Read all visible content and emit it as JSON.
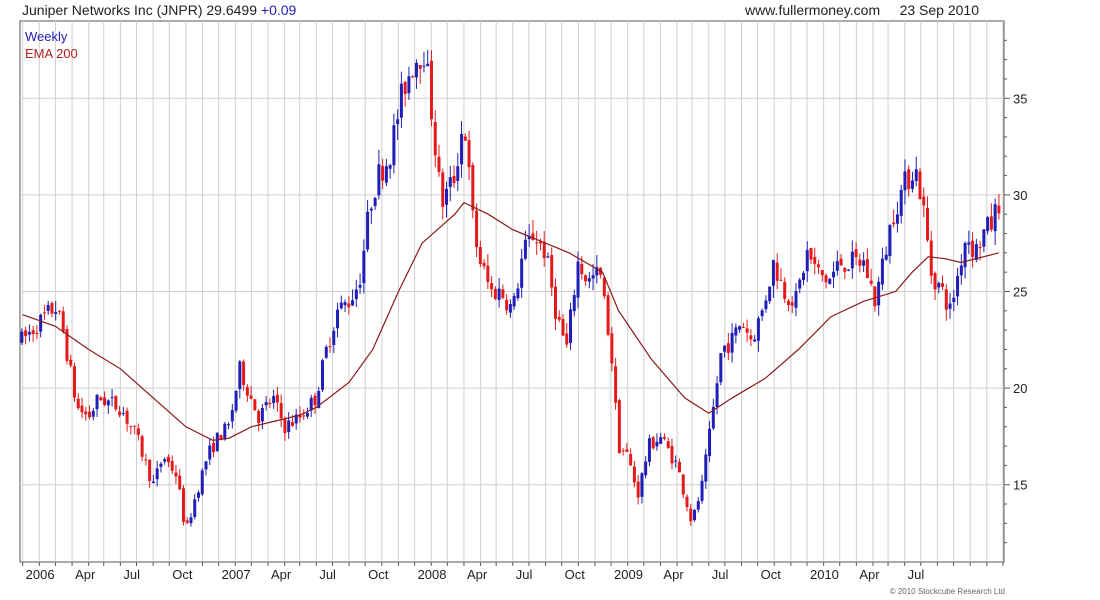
{
  "header": {
    "title": "Juniper Networks Inc (JNPR)",
    "price": "29.6499",
    "change": "+0.09",
    "site": "www.fullermoney.com",
    "date": "23 Sep 2010"
  },
  "legend": {
    "weekly": "Weekly",
    "ema": "EMA 200"
  },
  "copyright": "© 2010 Stockcube Research Ltd",
  "colors": {
    "up": "#1f1fb8",
    "down": "#e41a1a",
    "ema": "#8b1a1a",
    "grid": "#cfcfcf"
  },
  "chart_data": {
    "type": "candlestick",
    "frequency": "Weekly",
    "ylim": [
      11,
      39
    ],
    "y_ticks": [
      15,
      20,
      25,
      30,
      35
    ],
    "x_tick_labels": [
      "2006",
      "Apr",
      "Jul",
      "Oct",
      "2007",
      "Apr",
      "Jul",
      "Oct",
      "2008",
      "Apr",
      "Jul",
      "Oct",
      "2009",
      "Apr",
      "Jul",
      "Oct",
      "2010",
      "Apr",
      "Jul"
    ],
    "grid": true,
    "anchors": [
      [
        "2005-10-01",
        22.5
      ],
      [
        "2005-11-15",
        23.8
      ],
      [
        "2005-12-01",
        24.2
      ],
      [
        "2005-12-15",
        23.0
      ],
      [
        "2006-01-10",
        19.0
      ],
      [
        "2006-02-01",
        18.5
      ],
      [
        "2006-02-20",
        19.5
      ],
      [
        "2006-04-01",
        19.0
      ],
      [
        "2006-05-01",
        17.5
      ],
      [
        "2006-06-01",
        15.0
      ],
      [
        "2006-06-20",
        16.5
      ],
      [
        "2006-07-15",
        15.5
      ],
      [
        "2006-08-01",
        12.5
      ],
      [
        "2006-08-15",
        14.0
      ],
      [
        "2006-09-10",
        16.5
      ],
      [
        "2006-10-01",
        17.5
      ],
      [
        "2006-10-20",
        18.0
      ],
      [
        "2006-11-10",
        21.0
      ],
      [
        "2006-11-30",
        19.5
      ],
      [
        "2006-12-15",
        18.5
      ],
      [
        "2007-01-10",
        19.5
      ],
      [
        "2007-02-01",
        18.0
      ],
      [
        "2007-03-01",
        18.5
      ],
      [
        "2007-03-31",
        19.5
      ],
      [
        "2007-04-20",
        22.0
      ],
      [
        "2007-05-10",
        24.0
      ],
      [
        "2007-06-01",
        24.5
      ],
      [
        "2007-06-20",
        25.5
      ],
      [
        "2007-07-10",
        29.5
      ],
      [
        "2007-07-25",
        31.0
      ],
      [
        "2007-08-15",
        32.0
      ],
      [
        "2007-09-10",
        35.5
      ],
      [
        "2007-10-01",
        37.0
      ],
      [
        "2007-10-20",
        37.5
      ],
      [
        "2007-11-01",
        34.5
      ],
      [
        "2007-11-20",
        29.5
      ],
      [
        "2007-12-15",
        31.0
      ],
      [
        "2008-01-01",
        34.0
      ],
      [
        "2008-01-20",
        28.0
      ],
      [
        "2008-02-01",
        26.5
      ],
      [
        "2008-02-20",
        25.0
      ],
      [
        "2008-03-10",
        25.0
      ],
      [
        "2008-04-01",
        24.0
      ],
      [
        "2008-04-20",
        27.0
      ],
      [
        "2008-05-10",
        28.0
      ],
      [
        "2008-06-01",
        27.0
      ],
      [
        "2008-06-20",
        24.0
      ],
      [
        "2008-07-10",
        22.0
      ],
      [
        "2008-07-31",
        26.5
      ],
      [
        "2008-08-20",
        25.5
      ],
      [
        "2008-09-10",
        26.0
      ],
      [
        "2008-10-01",
        22.0
      ],
      [
        "2008-10-15",
        17.0
      ],
      [
        "2008-11-01",
        16.5
      ],
      [
        "2008-11-20",
        14.5
      ],
      [
        "2008-12-10",
        17.0
      ],
      [
        "2009-01-01",
        17.5
      ],
      [
        "2009-02-01",
        16.0
      ],
      [
        "2009-03-01",
        13.0
      ],
      [
        "2009-03-20",
        15.0
      ],
      [
        "2009-04-05",
        18.0
      ],
      [
        "2009-04-25",
        22.0
      ],
      [
        "2009-05-15",
        22.5
      ],
      [
        "2009-06-01",
        23.5
      ],
      [
        "2009-06-20",
        22.5
      ],
      [
        "2009-07-10",
        24.0
      ],
      [
        "2009-07-31",
        26.5
      ],
      [
        "2009-08-20",
        25.0
      ],
      [
        "2009-09-10",
        24.5
      ],
      [
        "2009-10-01",
        27.0
      ],
      [
        "2009-10-20",
        26.0
      ],
      [
        "2009-11-10",
        25.5
      ],
      [
        "2009-12-01",
        26.5
      ],
      [
        "2009-12-20",
        26.5
      ],
      [
        "2010-01-15",
        26.5
      ],
      [
        "2010-02-05",
        24.5
      ],
      [
        "2010-02-20",
        26.5
      ],
      [
        "2010-03-10",
        29.0
      ],
      [
        "2010-03-31",
        30.5
      ],
      [
        "2010-04-20",
        31.5
      ],
      [
        "2010-05-05",
        29.5
      ],
      [
        "2010-05-20",
        26.0
      ],
      [
        "2010-06-10",
        25.0
      ],
      [
        "2010-06-25",
        24.0
      ],
      [
        "2010-07-10",
        26.0
      ],
      [
        "2010-07-25",
        28.0
      ],
      [
        "2010-08-10",
        27.0
      ],
      [
        "2010-08-25",
        28.0
      ],
      [
        "2010-09-10",
        28.5
      ],
      [
        "2010-09-23",
        29.65
      ]
    ],
    "ema_200": [
      [
        "2005-10-01",
        23.8
      ],
      [
        "2005-12-01",
        23.2
      ],
      [
        "2006-02-01",
        22.0
      ],
      [
        "2006-04-01",
        21.0
      ],
      [
        "2006-06-01",
        19.5
      ],
      [
        "2006-08-01",
        18.0
      ],
      [
        "2006-09-20",
        17.3
      ],
      [
        "2006-10-20",
        17.4
      ],
      [
        "2006-12-01",
        18.0
      ],
      [
        "2007-01-15",
        18.3
      ],
      [
        "2007-03-01",
        18.6
      ],
      [
        "2007-04-01",
        19.0
      ],
      [
        "2007-06-01",
        20.3
      ],
      [
        "2007-07-15",
        22.0
      ],
      [
        "2007-09-01",
        25.0
      ],
      [
        "2007-10-15",
        27.5
      ],
      [
        "2007-12-15",
        29.0
      ],
      [
        "2008-01-01",
        29.6
      ],
      [
        "2008-02-15",
        29.0
      ],
      [
        "2008-04-01",
        28.2
      ],
      [
        "2008-05-15",
        27.7
      ],
      [
        "2008-07-15",
        27.0
      ],
      [
        "2008-09-15",
        26.0
      ],
      [
        "2008-10-15",
        24.0
      ],
      [
        "2008-12-15",
        21.5
      ],
      [
        "2009-02-15",
        19.5
      ],
      [
        "2009-04-01",
        18.7
      ],
      [
        "2009-05-15",
        19.5
      ],
      [
        "2009-07-15",
        20.5
      ],
      [
        "2009-09-15",
        22.0
      ],
      [
        "2009-11-15",
        23.7
      ],
      [
        "2010-01-15",
        24.5
      ],
      [
        "2010-03-15",
        25.0
      ],
      [
        "2010-04-15",
        26.0
      ],
      [
        "2010-05-15",
        26.8
      ],
      [
        "2010-06-15",
        26.7
      ],
      [
        "2010-07-15",
        26.5
      ],
      [
        "2010-09-23",
        27.0
      ]
    ]
  }
}
